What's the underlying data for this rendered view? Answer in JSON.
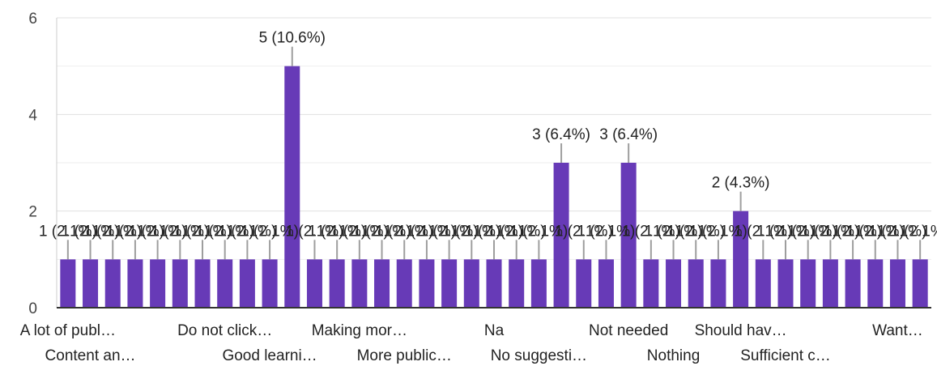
{
  "chart_data": {
    "type": "bar",
    "title": "",
    "xlabel": "",
    "ylabel": "",
    "ylim": [
      0,
      6
    ],
    "yticks": [
      0,
      2,
      4,
      6
    ],
    "grid": true,
    "legend": "none",
    "bar_color": "#673ab7",
    "categories": [
      "A lot of publ…",
      "Content an…",
      "",
      "",
      "",
      "",
      "",
      "Do not click…",
      "",
      "Good learni…",
      "",
      "",
      "",
      "Making mor…",
      "",
      "More public…",
      "",
      "",
      "",
      "Na",
      "",
      "No suggesti…",
      "",
      "",
      "",
      "Not needed",
      "",
      "Nothing",
      "",
      "",
      "Should hav…",
      "",
      "Sufficient c…",
      "",
      "",
      "",
      "",
      "Want…",
      ""
    ],
    "values": [
      1,
      1,
      1,
      1,
      1,
      1,
      1,
      1,
      1,
      1,
      5,
      1,
      1,
      1,
      1,
      1,
      1,
      1,
      1,
      1,
      1,
      1,
      3,
      1,
      1,
      3,
      1,
      1,
      1,
      1,
      2,
      1,
      1,
      1,
      1,
      1,
      1,
      1,
      1
    ],
    "data_labels": [
      "1 (2.1%)",
      "1 (2.1%)",
      "1 (2.1%)",
      "1 (2.1%)",
      "1 (2.1%)",
      "1 (2.1%)",
      "1 (2.1%)",
      "1 (2.1%)",
      "1 (2.1%)",
      "1 (2.1%)",
      "5 (10.6%)",
      "1 (2.1%)",
      "1 (2.1%)",
      "1 (2.1%)",
      "1 (2.1%)",
      "1 (2.1%)",
      "1 (2.1%)",
      "1 (2.1%)",
      "1 (2.1%)",
      "1 (2.1%)",
      "1 (2.1%)",
      "1 (2.1%)",
      "3 (6.4%)",
      "1 (2.1%)",
      "1 (2.1%)",
      "3 (6.4%)",
      "1 (2.1%)",
      "1 (2.1%)",
      "1 (2.1%)",
      "1 (2.1%)",
      "2 (4.3%)",
      "1 (2.1%)",
      "1 (2.1%)",
      "1 (2.1%)",
      "1 (2.1%)",
      "1 (2.1%)",
      "1 (2.1%)",
      "1 (2.1%)",
      "1 (2.1%)"
    ]
  }
}
